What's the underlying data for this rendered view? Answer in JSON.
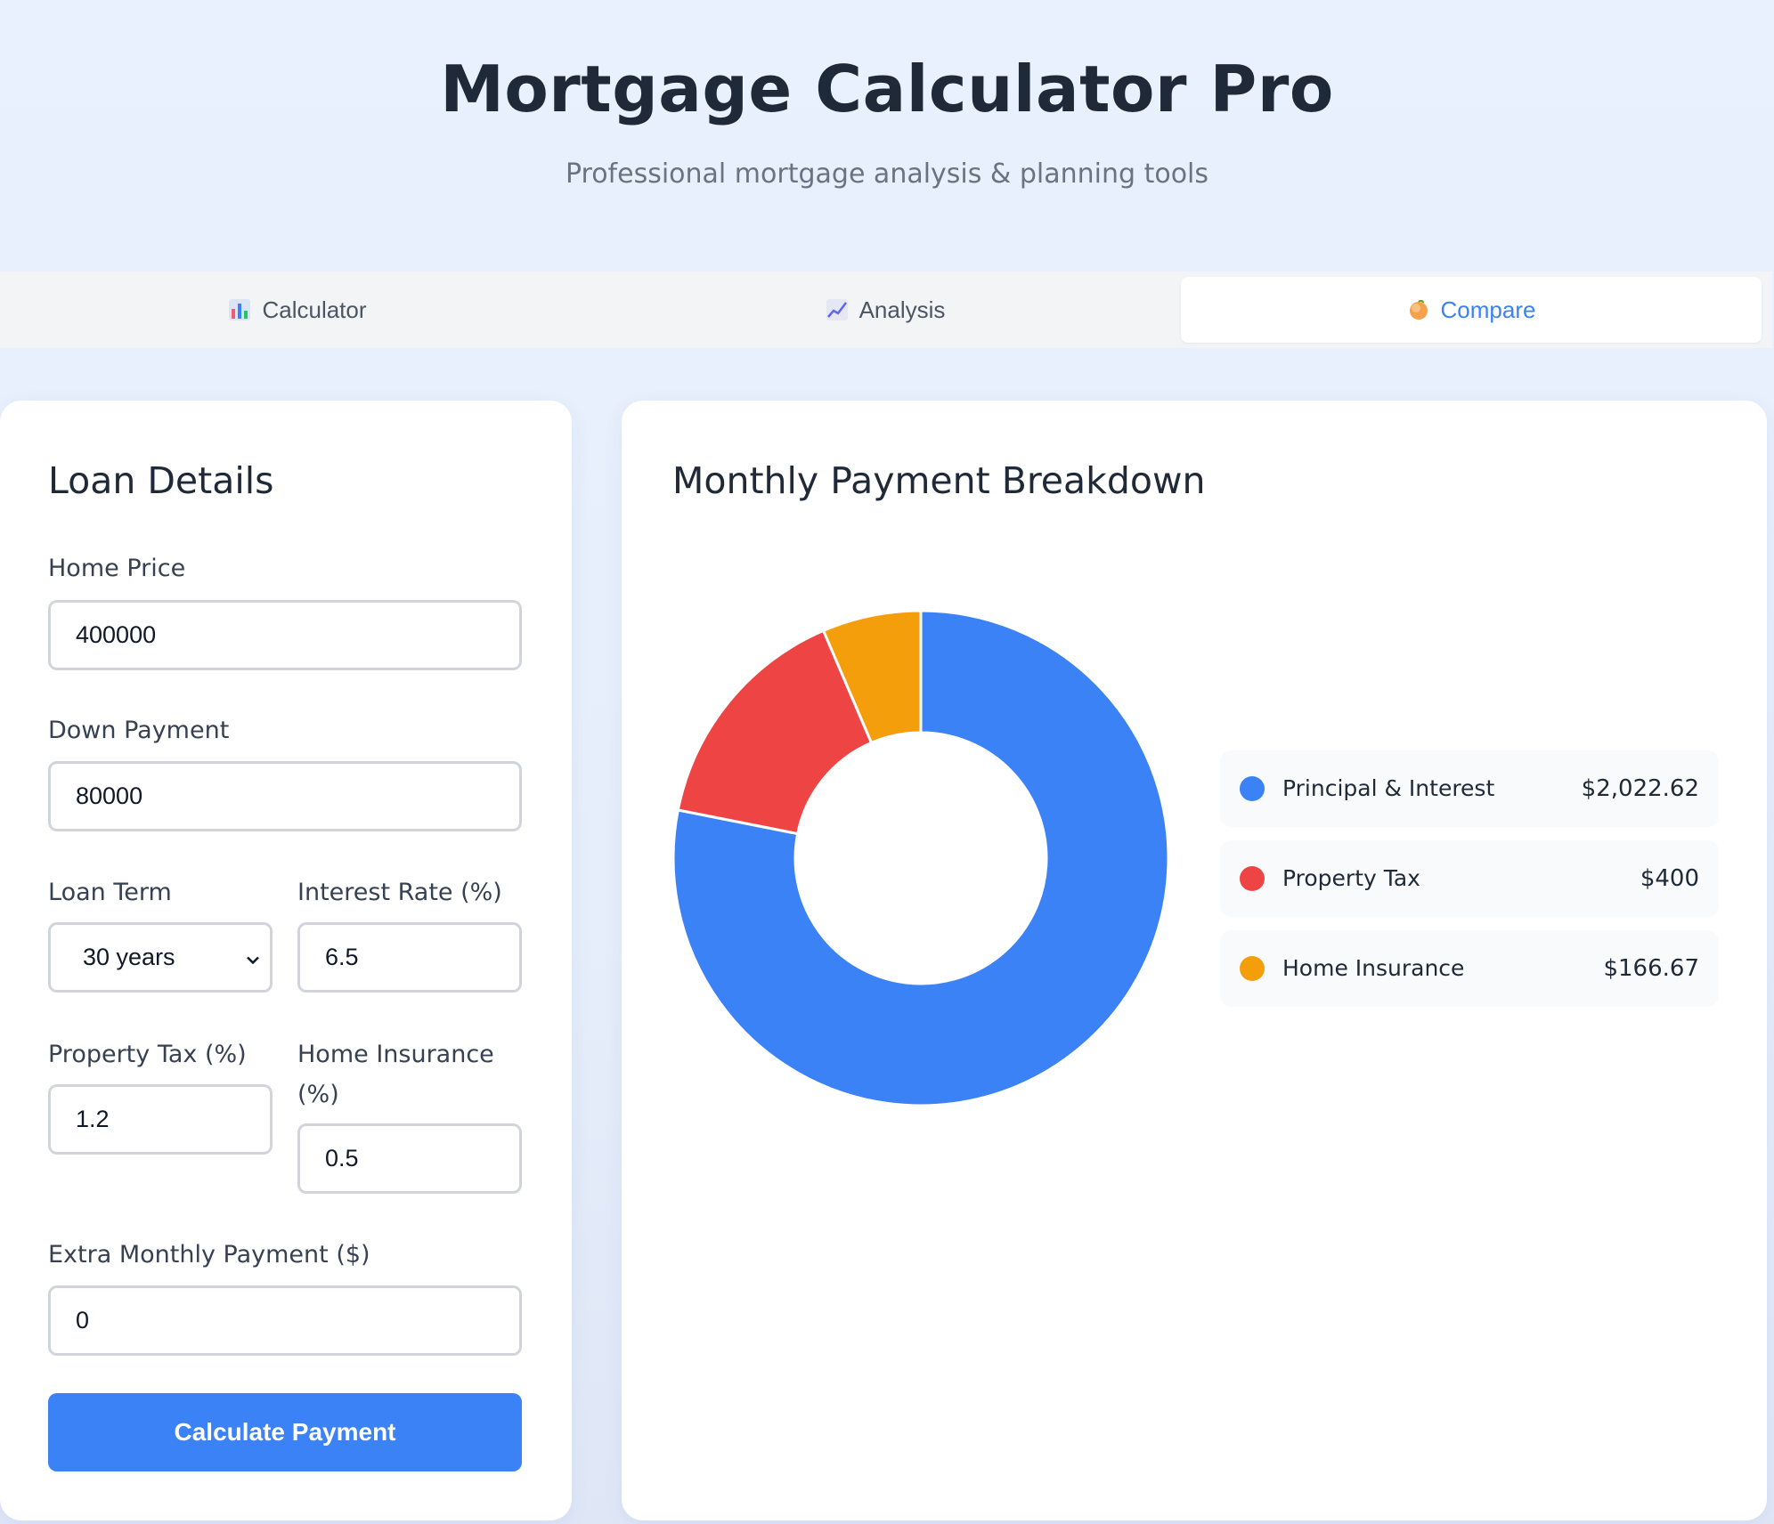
{
  "header": {
    "title": "Mortgage Calculator Pro",
    "subtitle": "Professional mortgage analysis & planning tools"
  },
  "tabs": [
    {
      "label": "Calculator",
      "icon": "bar-chart-icon",
      "active": false
    },
    {
      "label": "Analysis",
      "icon": "line-chart-icon",
      "active": false
    },
    {
      "label": "Compare",
      "icon": "peach-icon",
      "active": true
    }
  ],
  "loan_details": {
    "title": "Loan Details",
    "home_price": {
      "label": "Home Price",
      "value": "400000"
    },
    "down_payment": {
      "label": "Down Payment",
      "value": "80000"
    },
    "loan_term": {
      "label": "Loan Term",
      "value": "30 years"
    },
    "interest_rate": {
      "label": "Interest Rate (%)",
      "value": "6.5"
    },
    "property_tax": {
      "label": "Property Tax (%)",
      "value": "1.2"
    },
    "home_insurance": {
      "label_line1": "Home Insurance",
      "label_line2": "(%)",
      "value": "0.5"
    },
    "extra_payment": {
      "label": "Extra Monthly Payment ($)",
      "value": "0"
    },
    "calculate_button": "Calculate Payment"
  },
  "breakdown": {
    "title": "Monthly Payment Breakdown",
    "items": [
      {
        "label": "Principal & Interest",
        "value": "$2,022.62",
        "color": "#3b82f6"
      },
      {
        "label": "Property Tax",
        "value": "$400",
        "color": "#ef4444"
      },
      {
        "label": "Home Insurance",
        "value": "$166.67",
        "color": "#f59e0b"
      }
    ]
  },
  "chart_data": {
    "type": "pie",
    "categories": [
      "Principal & Interest",
      "Property Tax",
      "Home Insurance"
    ],
    "values": [
      2022.62,
      400,
      166.67
    ],
    "colors": [
      "#3b82f6",
      "#ef4444",
      "#f59e0b"
    ],
    "donut": true
  }
}
